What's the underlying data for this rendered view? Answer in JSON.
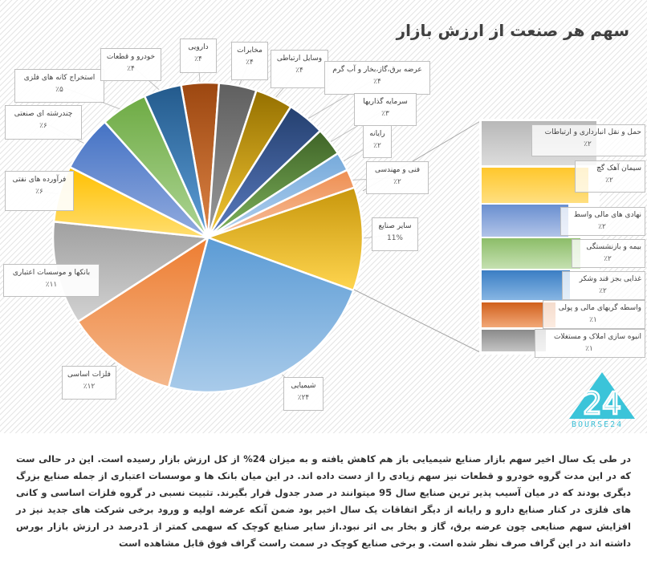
{
  "chart_data": {
    "type": "pie",
    "subtype": "bar-of-pie",
    "title": "سهم هر صنعت از ارزش بازار",
    "slices": [
      {
        "name": "دارویی",
        "value": 4,
        "label": "٪۴",
        "color": [
          "#9c4710",
          "#dd8446"
        ]
      },
      {
        "name": "مخابرات",
        "value": 4,
        "label": "٪۴",
        "color": [
          "#5f5f5f",
          "#999999"
        ]
      },
      {
        "name": "وسایل ارتباطی",
        "value": 4,
        "label": "٪۴",
        "color": [
          "#957000",
          "#f5c834"
        ]
      },
      {
        "name": "عرضه برق،گاز،بخار و آب گرم",
        "value": 4,
        "label": "٪۴",
        "color": [
          "#24406f",
          "#5b7bc0"
        ]
      },
      {
        "name": "سرمایه گذاریها",
        "value": 3,
        "label": "٪۳",
        "color": [
          "#3f6427",
          "#7fb35d"
        ]
      },
      {
        "name": "رایانه",
        "value": 2,
        "label": "٪۲",
        "color": [
          "#76aadb",
          "#b2d0ee"
        ]
      },
      {
        "name": "فنی و مهندسی",
        "value": 2,
        "label": "٪۲",
        "color": [
          "#ee8f52",
          "#f7bf9c"
        ]
      },
      {
        "name": "سایر صنایع",
        "value": 11,
        "label": "11%",
        "color": [
          "#c8970c",
          "#ffd54f"
        ]
      },
      {
        "name": "شیمیایی",
        "value": 24,
        "label": "٪۲۴",
        "color": [
          "#5b9bd5",
          "#a9cbea"
        ]
      },
      {
        "name": "فلزات اساسی",
        "value": 12,
        "label": "٪۱۲",
        "color": [
          "#ed7d31",
          "#f5b88c"
        ]
      },
      {
        "name": "بانکها و موسسات اعتباری",
        "value": 11,
        "label": "٪۱۱",
        "color": [
          "#a0a0a0",
          "#d2d2d2"
        ]
      },
      {
        "name": "فرآورده های نفتی",
        "value": 6,
        "label": "٪۶",
        "color": [
          "#ffc000",
          "#ffde70"
        ]
      },
      {
        "name": "چندرشته ای صنعتی",
        "value": 6,
        "label": "٪۶",
        "color": [
          "#4472c4",
          "#93acdf"
        ]
      },
      {
        "name": "استخراج کانه های فلزی",
        "value": 5,
        "label": "٪۵",
        "color": [
          "#6eab44",
          "#aed595"
        ]
      },
      {
        "name": "خودرو و قطعات",
        "value": 4,
        "label": "٪۴",
        "color": [
          "#235a8c",
          "#5e9fd8"
        ]
      }
    ],
    "bar_breakdown": [
      {
        "name": "حمل و نقل انبارداری و ارتباطات",
        "value": 2,
        "label": "٪۲",
        "color": [
          "#b8b8b8",
          "#dcdcdc"
        ]
      },
      {
        "name": "سیمان آهک گچ",
        "value": 2,
        "label": "٪۲",
        "color": [
          "#ffc72c",
          "#ffdf80"
        ]
      },
      {
        "name": "نهادی های مالی واسط",
        "value": 2,
        "label": "٪۲",
        "color": [
          "#6a8fd0",
          "#b0c3e8"
        ]
      },
      {
        "name": "بیمه و بازنشستگی",
        "value": 2,
        "label": "٪۲",
        "color": [
          "#8cbd68",
          "#c5e0b1"
        ]
      },
      {
        "name": "غذایی بجز قند وشکر",
        "value": 2,
        "label": "٪۲",
        "color": [
          "#3b7ec4",
          "#86b5e3"
        ]
      },
      {
        "name": "واسطه گریهای مالی و پولی",
        "value": 1,
        "label": "٪۱",
        "color": [
          "#d0601c",
          "#f2a878"
        ]
      },
      {
        "name": "انبوه سازی املاک و مستغلات",
        "value": 1,
        "label": "٪۱",
        "color": [
          "#8a8a8a",
          "#c4c4c4"
        ]
      }
    ]
  },
  "logo": {
    "text": "BOURSE24",
    "mark": "24",
    "color": "#3bc4d9"
  },
  "paragraph": [
    "در طی یک سال اخیر سهم بازار صنایع شیمیایی باز هم کاهش یافته و به میزان 24% از کل ارزش بازار رسیده است. این در حالی ست که در این مدت  گروه",
    "خودرو و قطعات نیز سهم زیادی را از دست داده اند. در این میان بانک ها و موسسات اعتباری از جمله صنایع بزرگ دیگری بودند که در میان آسیب پذیر ترین",
    "صنایع سال 95 میتوانند در صدر جدول قرار بگیرند. تثبیت نسبی در گروه فلزات اساسی و کانی های فلزی در کنار صنایع دارو  و رایانه از دیگر اتفاقات یک سال",
    "اخیر بود ضمن آنکه عرضه اولیه و ورود برخی شرکت های جدید نیز در افزایش سهم صنایعی چون عرضه برق، گاز و بخار بی اثر نبود.از سایر  صنایع کوچک  که",
    "سهمی  کمتر از 1درصد در ارزش بازار بورس داشته اند در این گراف صرف نظر شده است. و برخی صنایع کوچک در سمت راست گراف فوق قابل مشاهده است"
  ]
}
